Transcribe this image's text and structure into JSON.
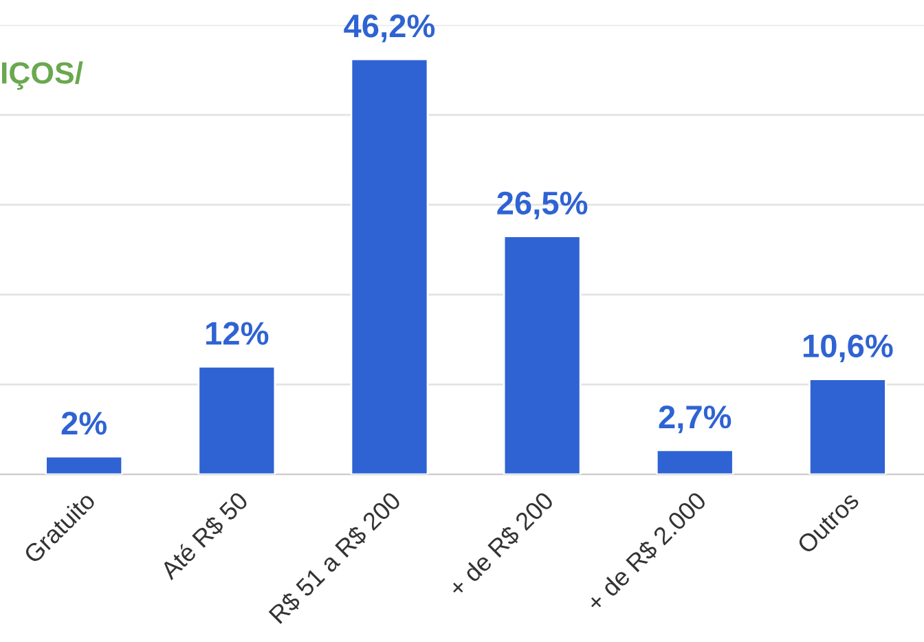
{
  "chart_data": {
    "type": "bar",
    "title": "IÇOS/",
    "categories": [
      "Gratuito",
      "Até R$ 50",
      "R$ 51 a R$ 200",
      "+ de R$ 200",
      "+ de R$ 2.000",
      "Outros"
    ],
    "values": [
      2,
      12,
      46.2,
      26.5,
      2.7,
      10.6
    ],
    "value_labels": [
      "2%",
      "12%",
      "46,2%",
      "26,5%",
      "2,7%",
      "10,6%"
    ],
    "color": "#2f63d3",
    "yticks": [
      {
        "value": 0,
        "label": null
      },
      {
        "value": 10,
        "label": null
      },
      {
        "value": 20,
        "label": null
      },
      {
        "value": 30,
        "label": null
      },
      {
        "value": 40,
        "label": null
      },
      {
        "value": 50,
        "label": null
      }
    ],
    "grid": "y",
    "legend": false
  }
}
